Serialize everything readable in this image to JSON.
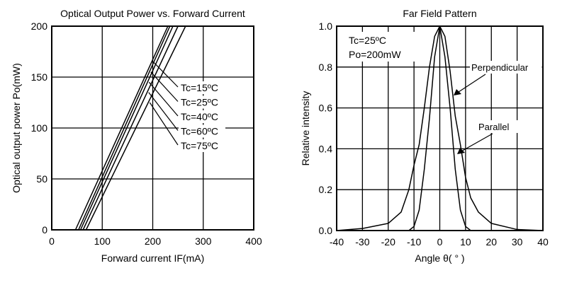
{
  "chart_data": [
    {
      "type": "line",
      "title": "Optical Output Power vs. Forward Current",
      "xlabel": "Forward current IF(mA)",
      "ylabel": "Optical output power Po(mW)",
      "xlim": [
        0,
        400
      ],
      "ylim": [
        0,
        200
      ],
      "xticks": [
        0,
        100,
        200,
        300,
        400
      ],
      "yticks": [
        0,
        50,
        100,
        150,
        200
      ],
      "grid": true,
      "series": [
        {
          "name": "Tc=15ºC",
          "x": [
            47,
            230
          ],
          "y": [
            0,
            200
          ]
        },
        {
          "name": "Tc=25ºC",
          "x": [
            53,
            234
          ],
          "y": [
            0,
            200
          ]
        },
        {
          "name": "Tc=40ºC",
          "x": [
            57,
            240
          ],
          "y": [
            0,
            200
          ]
        },
        {
          "name": "Tc=60ºC",
          "x": [
            62,
            250
          ],
          "y": [
            0,
            200
          ]
        },
        {
          "name": "Tc=75ºC",
          "x": [
            68,
            265
          ],
          "y": [
            0,
            200
          ]
        }
      ]
    },
    {
      "type": "line",
      "title": "Far Field Pattern",
      "xlabel": "Angle θ( ° )",
      "ylabel": "Relative intensity",
      "xlim": [
        -40,
        40
      ],
      "ylim": [
        0,
        1
      ],
      "xticks": [
        -40,
        -30,
        -20,
        -10,
        0,
        10,
        20,
        30,
        40
      ],
      "yticks": [
        0,
        0.2,
        0.4,
        0.6,
        0.8,
        1.0
      ],
      "grid": true,
      "annotations": [
        "Tc=25ºC",
        "Po=200mW"
      ],
      "series": [
        {
          "name": "Perpendicular",
          "x": [
            -40,
            -30,
            -20,
            -15,
            -12,
            -10,
            -8,
            -6,
            -4,
            -2,
            0,
            2,
            4,
            6,
            8,
            10,
            12,
            15,
            20,
            30,
            40
          ],
          "y": [
            0,
            0.01,
            0.035,
            0.09,
            0.2,
            0.32,
            0.42,
            0.6,
            0.8,
            0.95,
            1,
            0.95,
            0.78,
            0.56,
            0.42,
            0.26,
            0.16,
            0.09,
            0.035,
            0.005,
            0
          ]
        },
        {
          "name": "Parallel",
          "x": [
            -40,
            -12,
            -10,
            -8,
            -6,
            -4,
            -2,
            0,
            2,
            4,
            6,
            8,
            10,
            12,
            40
          ],
          "y": [
            0,
            0,
            0.02,
            0.1,
            0.3,
            0.55,
            0.85,
            1,
            0.85,
            0.6,
            0.3,
            0.1,
            0.02,
            0,
            0
          ]
        }
      ]
    }
  ]
}
